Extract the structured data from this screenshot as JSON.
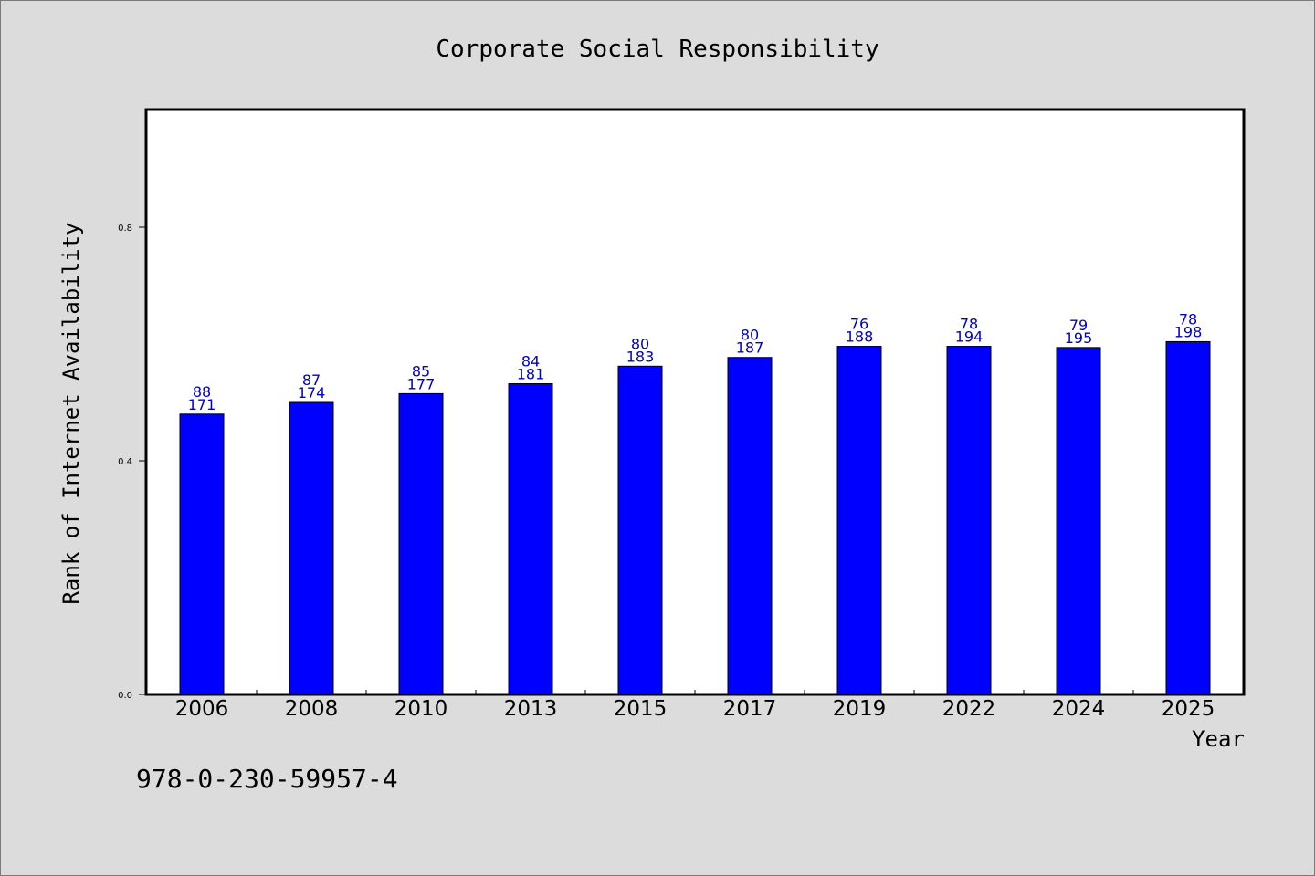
{
  "chart_data": {
    "type": "bar",
    "title": "Corporate Social Responsibility",
    "xlabel": "Year",
    "ylabel": "Rank of Internet Availability",
    "ylim": [
      0,
      1.0
    ],
    "yticks": [
      0.0,
      0.4,
      0.8
    ],
    "ytick_labels": [
      "0.0",
      "0.4",
      "0.8"
    ],
    "grid": false,
    "categories": [
      "2006",
      "2008",
      "2010",
      "2013",
      "2015",
      "2017",
      "2019",
      "2022",
      "2024",
      "2025"
    ],
    "values": [
      0.48,
      0.5,
      0.515,
      0.532,
      0.562,
      0.577,
      0.596,
      0.596,
      0.594,
      0.604
    ],
    "label_top": [
      "88",
      "87",
      "85",
      "84",
      "80",
      "80",
      "76",
      "78",
      "79",
      "78"
    ],
    "label_bottom": [
      "171",
      "174",
      "177",
      "181",
      "183",
      "187",
      "188",
      "194",
      "195",
      "198"
    ],
    "bar_color": "#0000ff",
    "label_color": "#0000cc"
  },
  "footnote": "978-0-230-59957-4"
}
